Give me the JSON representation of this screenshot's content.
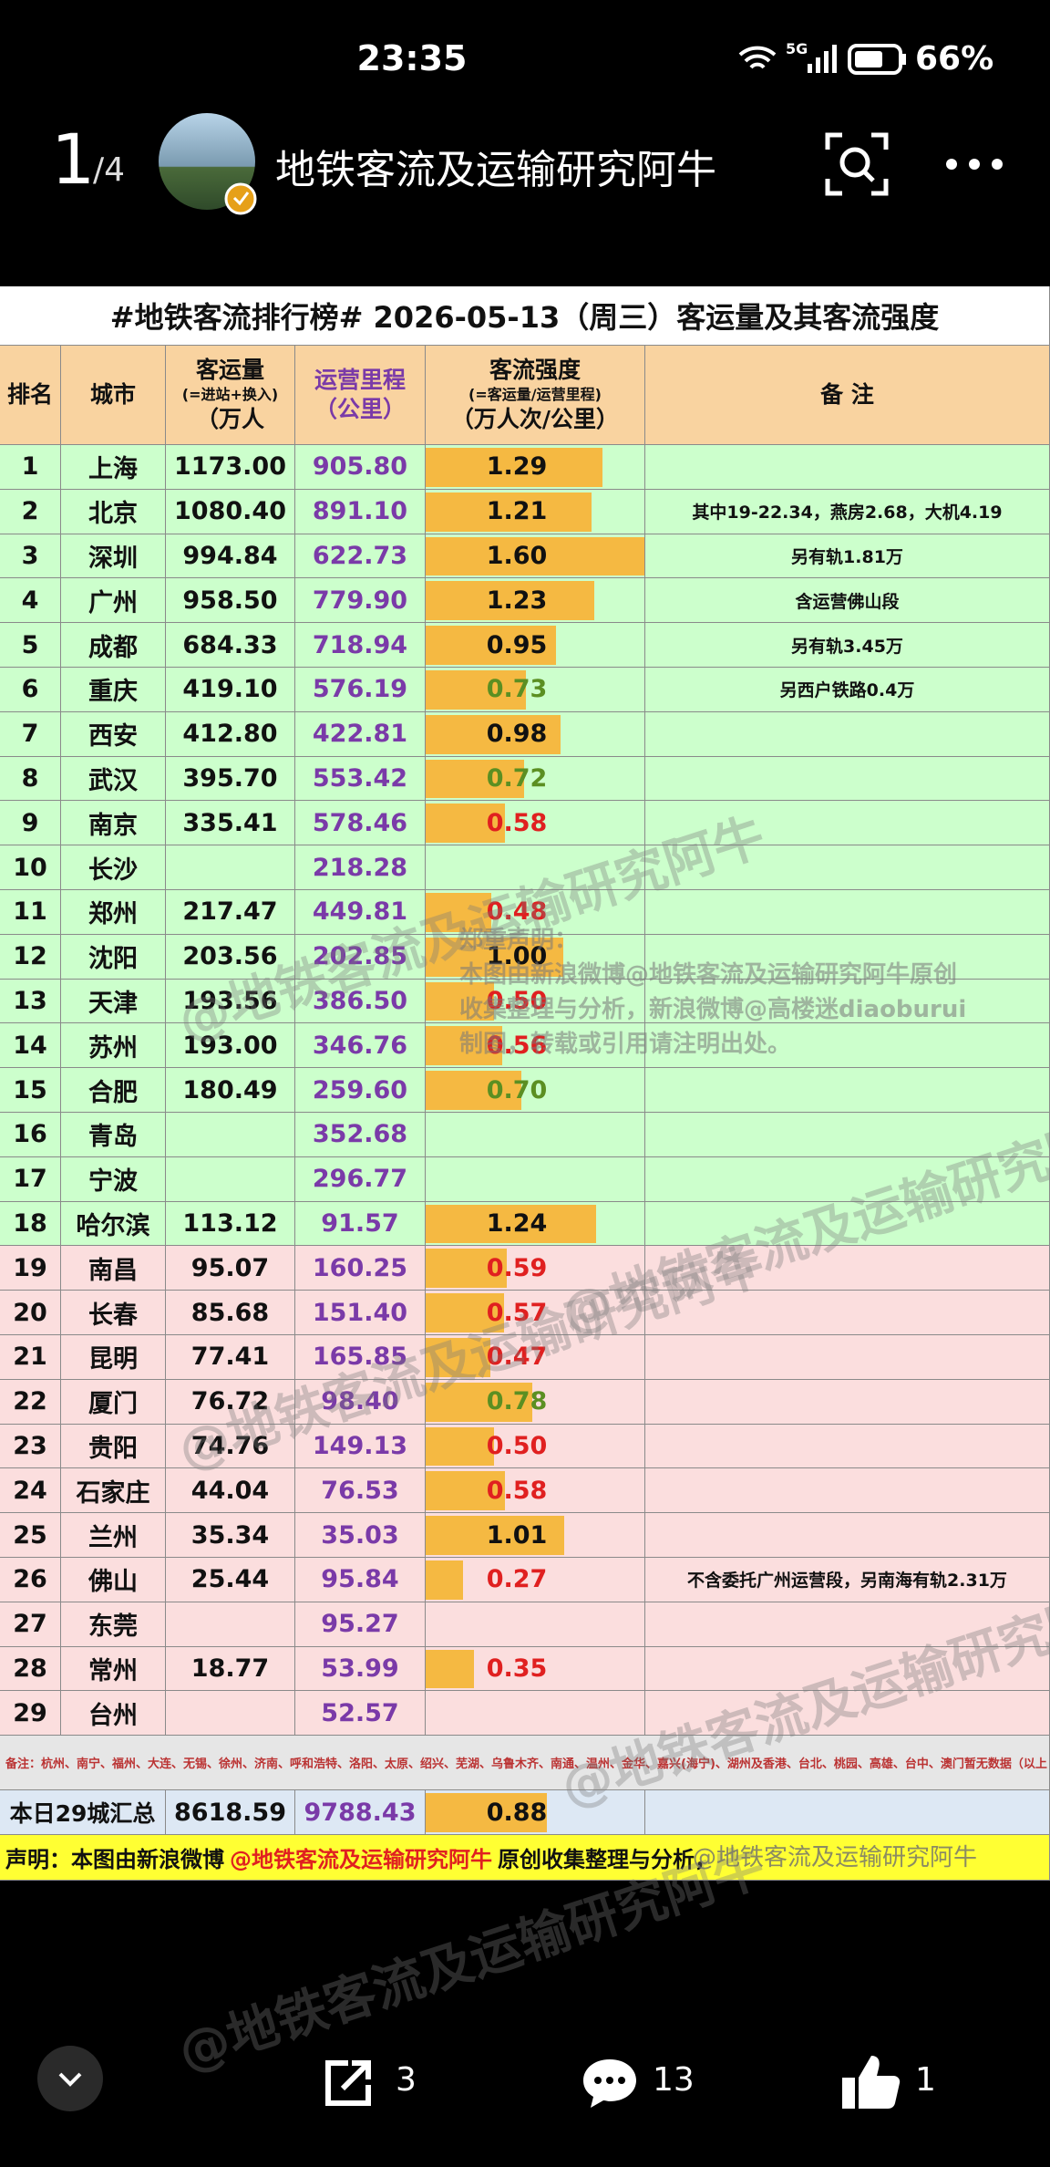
{
  "status_bar": {
    "time": "23:35",
    "network": "5G",
    "battery": "66%"
  },
  "header": {
    "page": "1",
    "total": "/4",
    "title": "地铁客流及运输研究阿牛"
  },
  "table": {
    "title": "#地铁客流排行榜# 2026-05-13（周三）客运量及其客流强度",
    "headers": [
      [
        "排名"
      ],
      [
        "城市"
      ],
      [
        "客运量",
        "(=进站+换入)",
        "（万人"
      ],
      [
        "运营里程",
        "（公里）"
      ],
      [
        "客流强度",
        "(=客运量/运营里程)",
        "（万人次/公里）"
      ],
      [
        "备 注"
      ]
    ],
    "rows": [
      {
        "rank": 1,
        "city": "上海",
        "ridership": "1173.00",
        "length": "905.80",
        "intensity": "1.29",
        "note": null,
        "intensity_color": "#111111",
        "bg": "#ccffcc"
      },
      {
        "rank": 2,
        "city": "北京",
        "ridership": "1080.40",
        "length": "891.10",
        "intensity": "1.21",
        "note": "其中19-22.34，燕房2.68，大机4.19",
        "intensity_color": "#111111",
        "bg": "#ccffcc"
      },
      {
        "rank": 3,
        "city": "深圳",
        "ridership": "994.84",
        "length": "622.73",
        "intensity": "1.60",
        "note": "另有轨1.81万",
        "intensity_color": "#111111",
        "bg": "#ccffcc"
      },
      {
        "rank": 4,
        "city": "广州",
        "ridership": "958.50",
        "length": "779.90",
        "intensity": "1.23",
        "note": "含运营佛山段",
        "intensity_color": "#111111",
        "bg": "#ccffcc"
      },
      {
        "rank": 5,
        "city": "成都",
        "ridership": "684.33",
        "length": "718.94",
        "intensity": "0.95",
        "note": "另有轨3.45万",
        "intensity_color": "#111111",
        "bg": "#ccffcc"
      },
      {
        "rank": 6,
        "city": "重庆",
        "ridership": "419.10",
        "length": "576.19",
        "intensity": "0.73",
        "note": "另西户铁路0.4万",
        "intensity_color": "#5b8f22",
        "bg": "#ccffcc"
      },
      {
        "rank": 7,
        "city": "西安",
        "ridership": "412.80",
        "length": "422.81",
        "intensity": "0.98",
        "note": null,
        "intensity_color": "#111111",
        "bg": "#ccffcc"
      },
      {
        "rank": 8,
        "city": "武汉",
        "ridership": "395.70",
        "length": "553.42",
        "intensity": "0.72",
        "note": null,
        "intensity_color": "#5b8f22",
        "bg": "#ccffcc"
      },
      {
        "rank": 9,
        "city": "南京",
        "ridership": "335.41",
        "length": "578.46",
        "intensity": "0.58",
        "note": null,
        "intensity_color": "#e02020",
        "bg": "#ccffcc"
      },
      {
        "rank": 10,
        "city": "长沙",
        "ridership": null,
        "length": "218.28",
        "intensity": null,
        "note": null,
        "intensity_color": "#111111",
        "bg": "#ccffcc"
      },
      {
        "rank": 11,
        "city": "郑州",
        "ridership": "217.47",
        "length": "449.81",
        "intensity": "0.48",
        "note": null,
        "intensity_color": "#e02020",
        "bg": "#ccffcc"
      },
      {
        "rank": 12,
        "city": "沈阳",
        "ridership": "203.56",
        "length": "202.85",
        "intensity": "1.00",
        "note": null,
        "intensity_color": "#111111",
        "bg": "#ccffcc"
      },
      {
        "rank": 13,
        "city": "天津",
        "ridership": "193.56",
        "length": "386.50",
        "intensity": "0.50",
        "note": null,
        "intensity_color": "#e02020",
        "bg": "#ccffcc"
      },
      {
        "rank": 14,
        "city": "苏州",
        "ridership": "193.00",
        "length": "346.76",
        "intensity": "0.56",
        "note": null,
        "intensity_color": "#e02020",
        "bg": "#ccffcc"
      },
      {
        "rank": 15,
        "city": "合肥",
        "ridership": "180.49",
        "length": "259.60",
        "intensity": "0.70",
        "note": null,
        "intensity_color": "#5b8f22",
        "bg": "#ccffcc"
      },
      {
        "rank": 16,
        "city": "青岛",
        "ridership": null,
        "length": "352.68",
        "intensity": null,
        "note": null,
        "intensity_color": "#111111",
        "bg": "#ccffcc"
      },
      {
        "rank": 17,
        "city": "宁波",
        "ridership": null,
        "length": "296.77",
        "intensity": null,
        "note": null,
        "intensity_color": "#111111",
        "bg": "#ccffcc"
      },
      {
        "rank": 18,
        "city": "哈尔滨",
        "ridership": "113.12",
        "length": "91.57",
        "intensity": "1.24",
        "note": null,
        "intensity_color": "#111111",
        "bg": "#ccffcc"
      },
      {
        "rank": 19,
        "city": "南昌",
        "ridership": "95.07",
        "length": "160.25",
        "intensity": "0.59",
        "note": null,
        "intensity_color": "#e02020",
        "bg": "#fbdede"
      },
      {
        "rank": 20,
        "city": "长春",
        "ridership": "85.68",
        "length": "151.40",
        "intensity": "0.57",
        "note": null,
        "intensity_color": "#e02020",
        "bg": "#fbdede"
      },
      {
        "rank": 21,
        "city": "昆明",
        "ridership": "77.41",
        "length": "165.85",
        "intensity": "0.47",
        "note": null,
        "intensity_color": "#e02020",
        "bg": "#fbdede"
      },
      {
        "rank": 22,
        "city": "厦门",
        "ridership": "76.72",
        "length": "98.40",
        "intensity": "0.78",
        "note": null,
        "intensity_color": "#5b8f22",
        "bg": "#fbdede"
      },
      {
        "rank": 23,
        "city": "贵阳",
        "ridership": "74.76",
        "length": "149.13",
        "intensity": "0.50",
        "note": null,
        "intensity_color": "#e02020",
        "bg": "#fbdede"
      },
      {
        "rank": 24,
        "city": "石家庄",
        "ridership": "44.04",
        "length": "76.53",
        "intensity": "0.58",
        "note": null,
        "intensity_color": "#e02020",
        "bg": "#fbdede"
      },
      {
        "rank": 25,
        "city": "兰州",
        "ridership": "35.34",
        "length": "35.03",
        "intensity": "1.01",
        "note": null,
        "intensity_color": "#111111",
        "bg": "#fbdede"
      },
      {
        "rank": 26,
        "city": "佛山",
        "ridership": "25.44",
        "length": "95.84",
        "intensity": "0.27",
        "note": "不含委托广州运营段，另南海有轨2.31万",
        "intensity_color": "#e02020",
        "bg": "#fbdede"
      },
      {
        "rank": 27,
        "city": "东莞",
        "ridership": null,
        "length": "95.27",
        "intensity": null,
        "note": null,
        "intensity_color": "#111111",
        "bg": "#fbdede"
      },
      {
        "rank": 28,
        "city": "常州",
        "ridership": "18.77",
        "length": "53.99",
        "intensity": "0.35",
        "note": null,
        "intensity_color": "#e02020",
        "bg": "#fbdede"
      },
      {
        "rank": 29,
        "city": "台州",
        "ridership": null,
        "length": "52.57",
        "intensity": null,
        "note": null,
        "intensity_color": "#111111",
        "bg": "#fbdede"
      }
    ],
    "footnote": "备注：杭州、南宁、福州、大连、无锡、徐州、济南、呼和浩特、洛阳、太原、绍兴、芜湖、乌鲁木齐、南通、温州、金华、嘉兴(海宁)、湖州及香港、台北、桃园、高雄、台中、澳门暂无数据（以上",
    "total": {
      "label": "本日29城汇总",
      "ridership": "8618.59",
      "length": "9788.43",
      "intensity": "0.88"
    },
    "statement": [
      "声明：本图由新浪微博",
      "@地铁客流及运输研究阿牛",
      "原创收集整理与分析，"
    ],
    "watermark": "@地铁客流及运输研究阿牛",
    "disclaimer": [
      "郑重声明：",
      "本图由新浪微博@地铁客流及运输研究阿牛原创",
      "收集整理与分析，新浪微博@高楼迷diaoburui",
      "制图，转载或引用请注明出处。"
    ]
  },
  "actions": {
    "share": "3",
    "comment": "13",
    "like": "1"
  }
}
